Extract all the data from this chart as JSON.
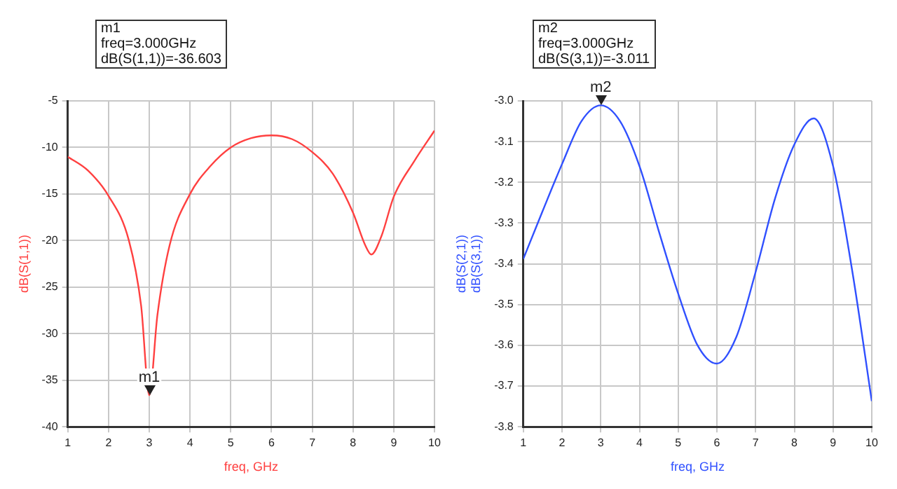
{
  "chart_data": [
    {
      "type": "line",
      "xlabel": "freq, GHz",
      "ylabel": "dB(S(1,1))",
      "annotations": [
        "m1\nfreq=3.000GHz\ndB(S(1,1))=-36.603",
        {
          "text": "m1",
          "x": 3,
          "y": -36.603
        }
      ],
      "x": [
        1,
        1.5,
        2,
        2.5,
        2.8,
        3,
        3.2,
        3.5,
        4,
        4.5,
        5,
        5.5,
        6,
        6.5,
        7,
        7.5,
        8,
        8.3,
        8.45,
        8.7,
        9,
        9.5,
        10
      ],
      "series": [
        {
          "color": "#ff4040",
          "values": [
            -11,
            -12.5,
            -15.2,
            -20,
            -27,
            -36.603,
            -28,
            -20.5,
            -15,
            -12,
            -10,
            -9,
            -8.7,
            -9.1,
            -10.5,
            -12.8,
            -17,
            -20.5,
            -21.5,
            -19.5,
            -15.3,
            -11.5,
            -8.2
          ]
        }
      ],
      "xlim": [
        1,
        10
      ],
      "ylim": [
        -40,
        -5
      ],
      "xticks": [
        1,
        2,
        3,
        4,
        5,
        6,
        7,
        8,
        9,
        10
      ],
      "yticks": [
        -40,
        -35,
        -30,
        -25,
        -20,
        -15,
        -10,
        -5
      ],
      "grid": true
    },
    {
      "type": "line",
      "xlabel": "freq, GHz",
      "ylabel": "dB(S(2,1))\ndB(S(3,1))",
      "annotations": [
        "m2\nfreq=3.000GHz\ndB(S(3,1))=-3.011",
        {
          "text": "m2",
          "x": 3,
          "y": -3.011
        }
      ],
      "x": [
        1,
        1.5,
        2,
        2.5,
        3,
        3.5,
        4,
        4.5,
        5,
        5.5,
        6,
        6.5,
        7,
        7.5,
        8,
        8.5,
        9,
        9.5,
        10
      ],
      "series": [
        {
          "color": "#3050ff",
          "values": [
            -3.388,
            -3.27,
            -3.155,
            -3.05,
            -3.011,
            -3.05,
            -3.16,
            -3.32,
            -3.473,
            -3.6,
            -3.645,
            -3.58,
            -3.42,
            -3.24,
            -3.107,
            -3.043,
            -3.16,
            -3.42,
            -3.737
          ]
        }
      ],
      "xlim": [
        1,
        10
      ],
      "ylim": [
        -3.8,
        -3.0
      ],
      "xticks": [
        1,
        2,
        3,
        4,
        5,
        6,
        7,
        8,
        9,
        10
      ],
      "yticks": [
        {
          "value": -3.8,
          "label": "-3.8"
        },
        {
          "value": -3.7,
          "label": "-3.7"
        },
        {
          "value": -3.6,
          "label": "-3.6"
        },
        {
          "value": -3.5,
          "label": "-3.5"
        },
        {
          "value": -3.4,
          "label": "-3.4"
        },
        {
          "value": -3.3,
          "label": "-3.3"
        },
        {
          "value": -3.2,
          "label": "-3.2"
        },
        {
          "value": -3.1,
          "label": "-3.1"
        },
        {
          "value": -3.0,
          "label": "-3.0"
        }
      ],
      "grid": true
    }
  ]
}
